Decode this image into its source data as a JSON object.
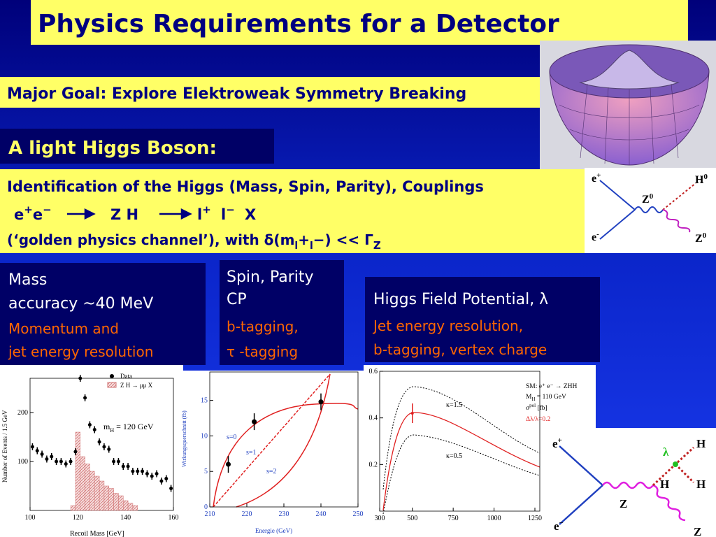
{
  "title": "Physics Requirements for a Detector",
  "goal": "Major Goal: Explore Elektroweak Symmetry Breaking",
  "higgs_heading": "A light Higgs Boson:",
  "identification": {
    "heading": "Identification of the Higgs (Mass, Spin, Parity), Couplings",
    "reaction": [
      "e",
      "+",
      "e",
      "−",
      "Z H",
      "l",
      "+",
      "l",
      "−",
      "X"
    ],
    "channel": [
      "(‘golden physics channel’), with δ(m",
      "l",
      "+",
      "l",
      "−) << Γ",
      "Z"
    ]
  },
  "boxes": [
    {
      "lines": [
        "Mass",
        "accuracy ~40 MeV",
        "Momentum and",
        "jet energy resolution"
      ]
    },
    {
      "lines": [
        "Spin, Parity",
        "CP",
        "b-tagging,",
        "τ -tagging"
      ]
    },
    {
      "lines": [
        "Higgs Field Potential, λ",
        "Jet energy resolution,",
        "b-tagging, vertex charge"
      ]
    }
  ],
  "feynman_zh": {
    "labels": [
      "e",
      "+",
      "e",
      "-",
      "Z",
      "0",
      "H",
      "0",
      "Z",
      "0"
    ]
  },
  "feynman_zhh": {
    "labels": [
      "e",
      "+",
      "e",
      "−",
      "Z",
      "Z",
      "H",
      "H",
      "H",
      "λ"
    ]
  },
  "plots": {
    "recoil": {
      "xlabel": "Recoil Mass   [GeV]",
      "ylabel": "Number of Events / 1.5 GeV",
      "legend": [
        "Data",
        "Z H → μμ X"
      ],
      "mass_note": [
        "m",
        "H",
        " =  120  GeV"
      ],
      "xlim": [
        100,
        160
      ],
      "ylim": [
        0,
        270
      ],
      "xticks": [
        100,
        120,
        140,
        160
      ],
      "yticks": [
        100,
        200
      ],
      "points": {
        "x": [
          101,
          103,
          105,
          107,
          109,
          111,
          113,
          115,
          117,
          119,
          121,
          123,
          125,
          127,
          129,
          131,
          133,
          135,
          137,
          139,
          141,
          143,
          145,
          147,
          149,
          151,
          153,
          155,
          157,
          159
        ],
        "y": [
          130,
          122,
          115,
          105,
          110,
          100,
          100,
          95,
          100,
          120,
          270,
          230,
          175,
          165,
          140,
          130,
          125,
          100,
          100,
          90,
          90,
          80,
          80,
          80,
          75,
          70,
          75,
          60,
          65,
          45
        ]
      },
      "histogram": {
        "bins": [
          117,
          119,
          121,
          123,
          125,
          127,
          129,
          131,
          133,
          135,
          137,
          139,
          141,
          143,
          145
        ],
        "counts": [
          10,
          160,
          110,
          95,
          80,
          70,
          60,
          50,
          45,
          35,
          30,
          20,
          15,
          10
        ]
      }
    },
    "threshold": {
      "xlabel": "Energie (GeV)",
      "ylabel": "Wirkungsquerschnitt (fb)",
      "curve_labels": [
        "s=0",
        "s=1",
        "s=2"
      ],
      "xlim": [
        210,
        250
      ],
      "ylim": [
        0,
        19
      ],
      "xticks": [
        210,
        220,
        230,
        240,
        250
      ],
      "yticks": [
        0,
        5,
        10,
        15
      ],
      "points": {
        "x": [
          215,
          222,
          240
        ],
        "y": [
          6,
          12,
          14.8
        ]
      }
    },
    "zhh": {
      "legend": [
        "SM: e⁺ e⁻ → ZHH",
        "M",
        "H",
        " = 110 GeV",
        "σ",
        "pol",
        " [fb]",
        "Δλ/λ=0.2"
      ],
      "curve_labels": [
        "κ=1.5",
        "κ=0.5"
      ],
      "xlim": [
        300,
        1280
      ],
      "ylim": [
        0,
        0.6
      ],
      "xticks": [
        300,
        500,
        750,
        1000,
        1250
      ],
      "yticks": [
        0.2,
        0.4,
        0.6
      ],
      "points": {
        "x": [
          500
        ],
        "y": [
          0.42
        ]
      }
    }
  }
}
